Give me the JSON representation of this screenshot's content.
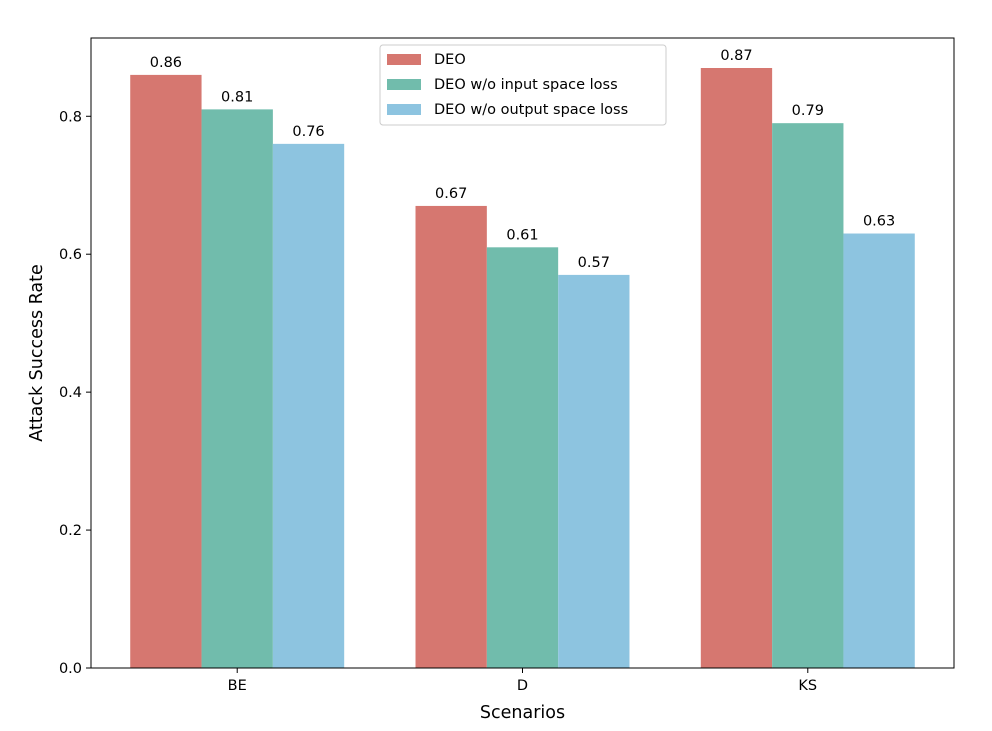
{
  "chart_data": {
    "type": "bar",
    "title": "",
    "xlabel": "Scenarios",
    "ylabel": "Attack Success Rate",
    "categories": [
      "BE",
      "D",
      "KS"
    ],
    "series": [
      {
        "name": "DEO",
        "values": [
          0.86,
          0.67,
          0.87
        ],
        "color": "#d67770"
      },
      {
        "name": "DEO w/o input space loss",
        "values": [
          0.81,
          0.61,
          0.79
        ],
        "color": "#71bcac"
      },
      {
        "name": "DEO w/o output space loss",
        "values": [
          0.76,
          0.57,
          0.63
        ],
        "color": "#8dc4e0"
      }
    ],
    "ylim": [
      0,
      0.9135
    ],
    "yticks": [
      "0.0",
      "0.2",
      "0.4",
      "0.6",
      "0.8"
    ],
    "legend": "top-center",
    "grid": false
  }
}
